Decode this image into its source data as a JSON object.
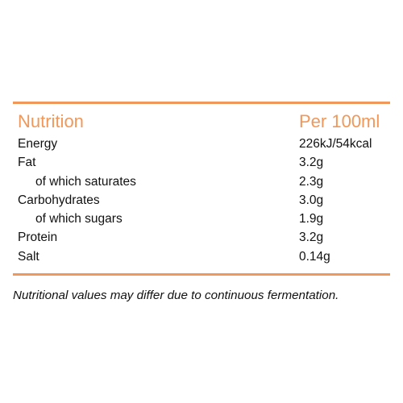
{
  "colors": {
    "accent": "#f0985a",
    "text": "#111111",
    "background": "#ffffff"
  },
  "table": {
    "header": {
      "label": "Nutrition",
      "value": "Per 100ml"
    },
    "rows": [
      {
        "label": "Energy",
        "value": "226kJ/54kcal",
        "indent": false
      },
      {
        "label": "Fat",
        "value": "3.2g",
        "indent": false
      },
      {
        "label": "of which saturates",
        "value": "2.3g",
        "indent": true
      },
      {
        "label": "Carbohydrates",
        "value": "3.0g",
        "indent": false
      },
      {
        "label": "of which sugars",
        "value": "1.9g",
        "indent": true
      },
      {
        "label": "Protein",
        "value": "3.2g",
        "indent": false
      },
      {
        "label": "Salt",
        "value": "0.14g",
        "indent": false
      }
    ]
  },
  "footnote": "Nutritional values may differ due to continuous fermentation."
}
